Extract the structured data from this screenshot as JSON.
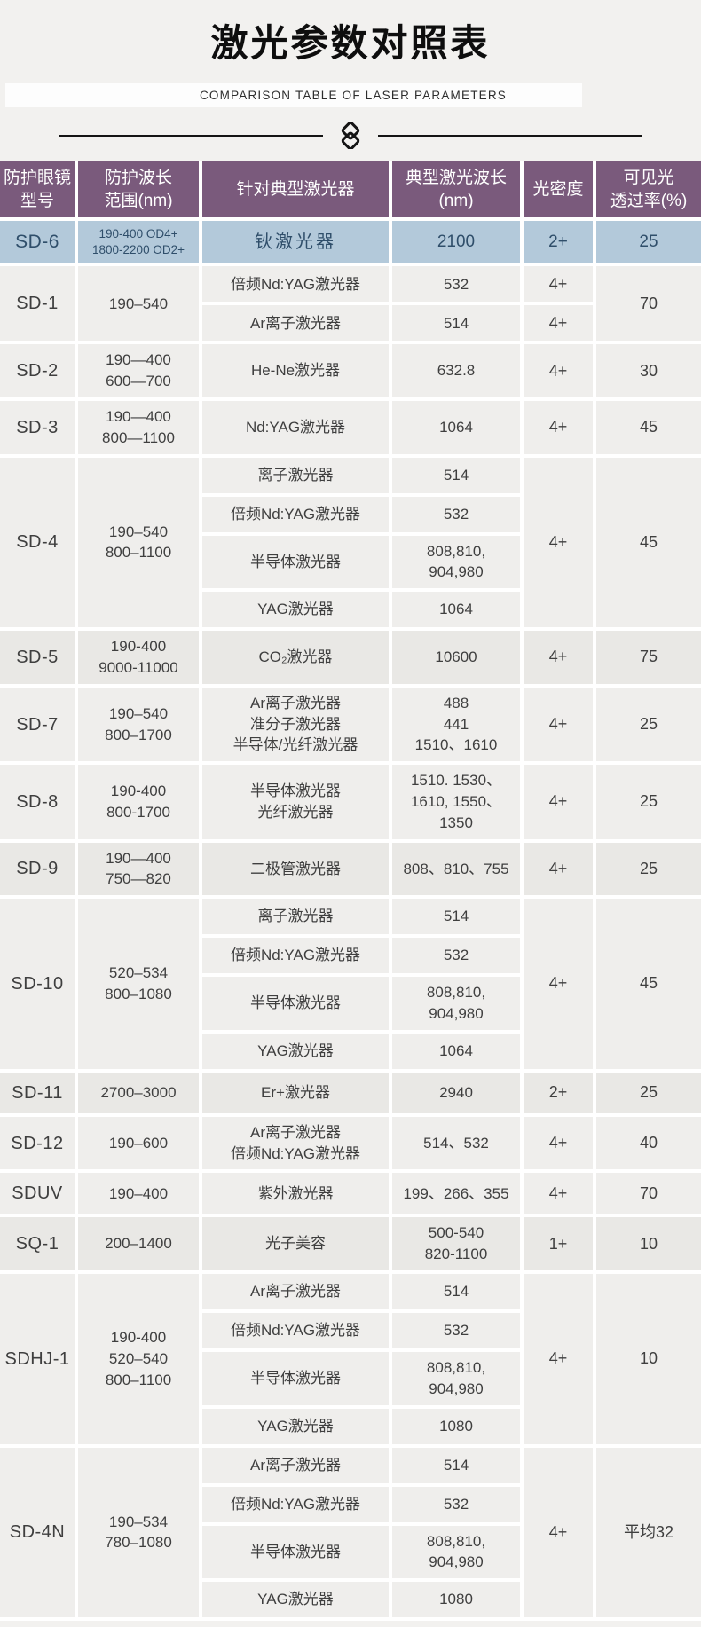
{
  "title": "激光参数对照表",
  "subtitle": "COMPARISON TABLE OF LASER PARAMETERS",
  "divider_icon": "interlocked-squares",
  "colors": {
    "header_bg": "#7a5a7c",
    "header_text": "#ffffff",
    "highlight_row_bg": "#b3c9da",
    "highlight_row_text": "#2f4e6a",
    "cell_bg": "#efeeec",
    "cell_bg_shaded": "#e9e8e5",
    "cell_text": "#3f3f3f",
    "page_bg": "#f2f1ef"
  },
  "table": {
    "headers": [
      {
        "lines": [
          "防护眼镜",
          "型号"
        ]
      },
      {
        "lines": [
          "防护波长",
          "范围(nm)"
        ]
      },
      {
        "lines": [
          "针对典型激光器"
        ]
      },
      {
        "lines": [
          "典型激光波长",
          "(nm)"
        ]
      },
      {
        "lines": [
          "光密度"
        ]
      },
      {
        "lines": [
          "可见光",
          "透过率(%)"
        ]
      }
    ],
    "rows": [
      {
        "model": "SD-6",
        "highlight": true,
        "range": [
          "190-400 OD4+",
          "1800-2200 OD2+"
        ],
        "subs": [
          {
            "laser": [
              "钬激光器"
            ],
            "wavelength": [
              "2100"
            ]
          }
        ],
        "od": "2+",
        "transmittance": "25"
      },
      {
        "model": "SD-1",
        "range": [
          "190–540"
        ],
        "subs": [
          {
            "laser": [
              "倍频Nd:YAG激光器"
            ],
            "wavelength": [
              "532"
            ],
            "od": "4+"
          },
          {
            "laser": [
              "Ar离子激光器"
            ],
            "wavelength": [
              "514"
            ],
            "od": "4+"
          }
        ],
        "transmittance": "70"
      },
      {
        "model": "SD-2",
        "range": [
          "190—400",
          "600—700"
        ],
        "subs": [
          {
            "laser": [
              "He-Ne激光器"
            ],
            "wavelength": [
              "632.8"
            ]
          }
        ],
        "od": "4+",
        "transmittance": "30"
      },
      {
        "model": "SD-3",
        "range": [
          "190—400",
          "800—1100"
        ],
        "subs": [
          {
            "laser": [
              "Nd:YAG激光器"
            ],
            "wavelength": [
              "1064"
            ]
          }
        ],
        "od": "4+",
        "transmittance": "45"
      },
      {
        "model": "SD-4",
        "range": [
          "190–540",
          "800–1100"
        ],
        "subs": [
          {
            "laser": [
              "离子激光器"
            ],
            "wavelength": [
              "514"
            ]
          },
          {
            "laser": [
              "倍频Nd:YAG激光器"
            ],
            "wavelength": [
              "532"
            ]
          },
          {
            "laser": [
              "半导体激光器"
            ],
            "wavelength": [
              "808,810,",
              "904,980"
            ]
          },
          {
            "laser": [
              "YAG激光器"
            ],
            "wavelength": [
              "1064"
            ]
          }
        ],
        "od": "4+",
        "transmittance": "45"
      },
      {
        "model": "SD-5",
        "shaded": true,
        "range": [
          "190-400",
          "9000-11000"
        ],
        "subs": [
          {
            "laser": [
              "CO₂激光器"
            ],
            "wavelength": [
              "10600"
            ]
          }
        ],
        "od": "4+",
        "transmittance": "75"
      },
      {
        "model": "SD-7",
        "range": [
          "190–540",
          "800–1700"
        ],
        "subs": [
          {
            "laser": [
              "Ar离子激光器",
              "准分子激光器",
              "半导体/光纤激光器"
            ],
            "wavelength": [
              "488",
              "441",
              "1510、1610"
            ]
          }
        ],
        "od": "4+",
        "transmittance": "25"
      },
      {
        "model": "SD-8",
        "range": [
          "190-400",
          "800-1700"
        ],
        "subs": [
          {
            "laser": [
              "半导体激光器",
              "光纤激光器"
            ],
            "wavelength": [
              "1510. 1530、",
              "1610, 1550、",
              "1350"
            ]
          }
        ],
        "od": "4+",
        "transmittance": "25"
      },
      {
        "model": "SD-9",
        "shaded": true,
        "range": [
          "190—400",
          "750—820"
        ],
        "subs": [
          {
            "laser": [
              "二极管激光器"
            ],
            "wavelength": [
              "808、810、755"
            ]
          }
        ],
        "od": "4+",
        "transmittance": "25"
      },
      {
        "model": "SD-10",
        "range": [
          "520–534",
          "800–1080"
        ],
        "subs": [
          {
            "laser": [
              "离子激光器"
            ],
            "wavelength": [
              "514"
            ]
          },
          {
            "laser": [
              "倍频Nd:YAG激光器"
            ],
            "wavelength": [
              "532"
            ]
          },
          {
            "laser": [
              "半导体激光器"
            ],
            "wavelength": [
              "808,810,",
              "904,980"
            ]
          },
          {
            "laser": [
              "YAG激光器"
            ],
            "wavelength": [
              "1064"
            ]
          }
        ],
        "od": "4+",
        "transmittance": "45"
      },
      {
        "model": "SD-11",
        "shaded": true,
        "range": [
          "2700–3000"
        ],
        "subs": [
          {
            "laser": [
              "Er+激光器"
            ],
            "wavelength": [
              "2940"
            ]
          }
        ],
        "od": "2+",
        "transmittance": "25"
      },
      {
        "model": "SD-12",
        "range": [
          "190–600"
        ],
        "subs": [
          {
            "laser": [
              "Ar离子激光器",
              "倍频Nd:YAG激光器"
            ],
            "wavelength": [
              "514、532"
            ]
          }
        ],
        "od": "4+",
        "transmittance": "40"
      },
      {
        "model": "SDUV",
        "range": [
          "190–400"
        ],
        "subs": [
          {
            "laser": [
              "紫外激光器"
            ],
            "wavelength": [
              "199、266、355"
            ]
          }
        ],
        "od": "4+",
        "transmittance": "70"
      },
      {
        "model": "SQ-1",
        "shaded": true,
        "range": [
          "200–1400"
        ],
        "subs": [
          {
            "laser": [
              "光子美容"
            ],
            "wavelength": [
              "500-540",
              "820-1100"
            ]
          }
        ],
        "od": "1+",
        "transmittance": "10"
      },
      {
        "model": "SDHJ-1",
        "range": [
          "190-400",
          "520–540",
          "800–1100"
        ],
        "subs": [
          {
            "laser": [
              "Ar离子激光器"
            ],
            "wavelength": [
              "514"
            ]
          },
          {
            "laser": [
              "倍频Nd:YAG激光器"
            ],
            "wavelength": [
              "532"
            ]
          },
          {
            "laser": [
              "半导体激光器"
            ],
            "wavelength": [
              "808,810,",
              "904,980"
            ]
          },
          {
            "laser": [
              "YAG激光器"
            ],
            "wavelength": [
              "1080"
            ]
          }
        ],
        "od": "4+",
        "transmittance": "10"
      },
      {
        "model": "SD-4N",
        "range": [
          "190–534",
          "780–1080"
        ],
        "subs": [
          {
            "laser": [
              "Ar离子激光器"
            ],
            "wavelength": [
              "514"
            ]
          },
          {
            "laser": [
              "倍频Nd:YAG激光器"
            ],
            "wavelength": [
              "532"
            ]
          },
          {
            "laser": [
              "半导体激光器"
            ],
            "wavelength": [
              "808,810,",
              "904,980"
            ]
          },
          {
            "laser": [
              "YAG激光器"
            ],
            "wavelength": [
              "1080"
            ]
          }
        ],
        "od": "4+",
        "transmittance": "平均32"
      }
    ]
  }
}
